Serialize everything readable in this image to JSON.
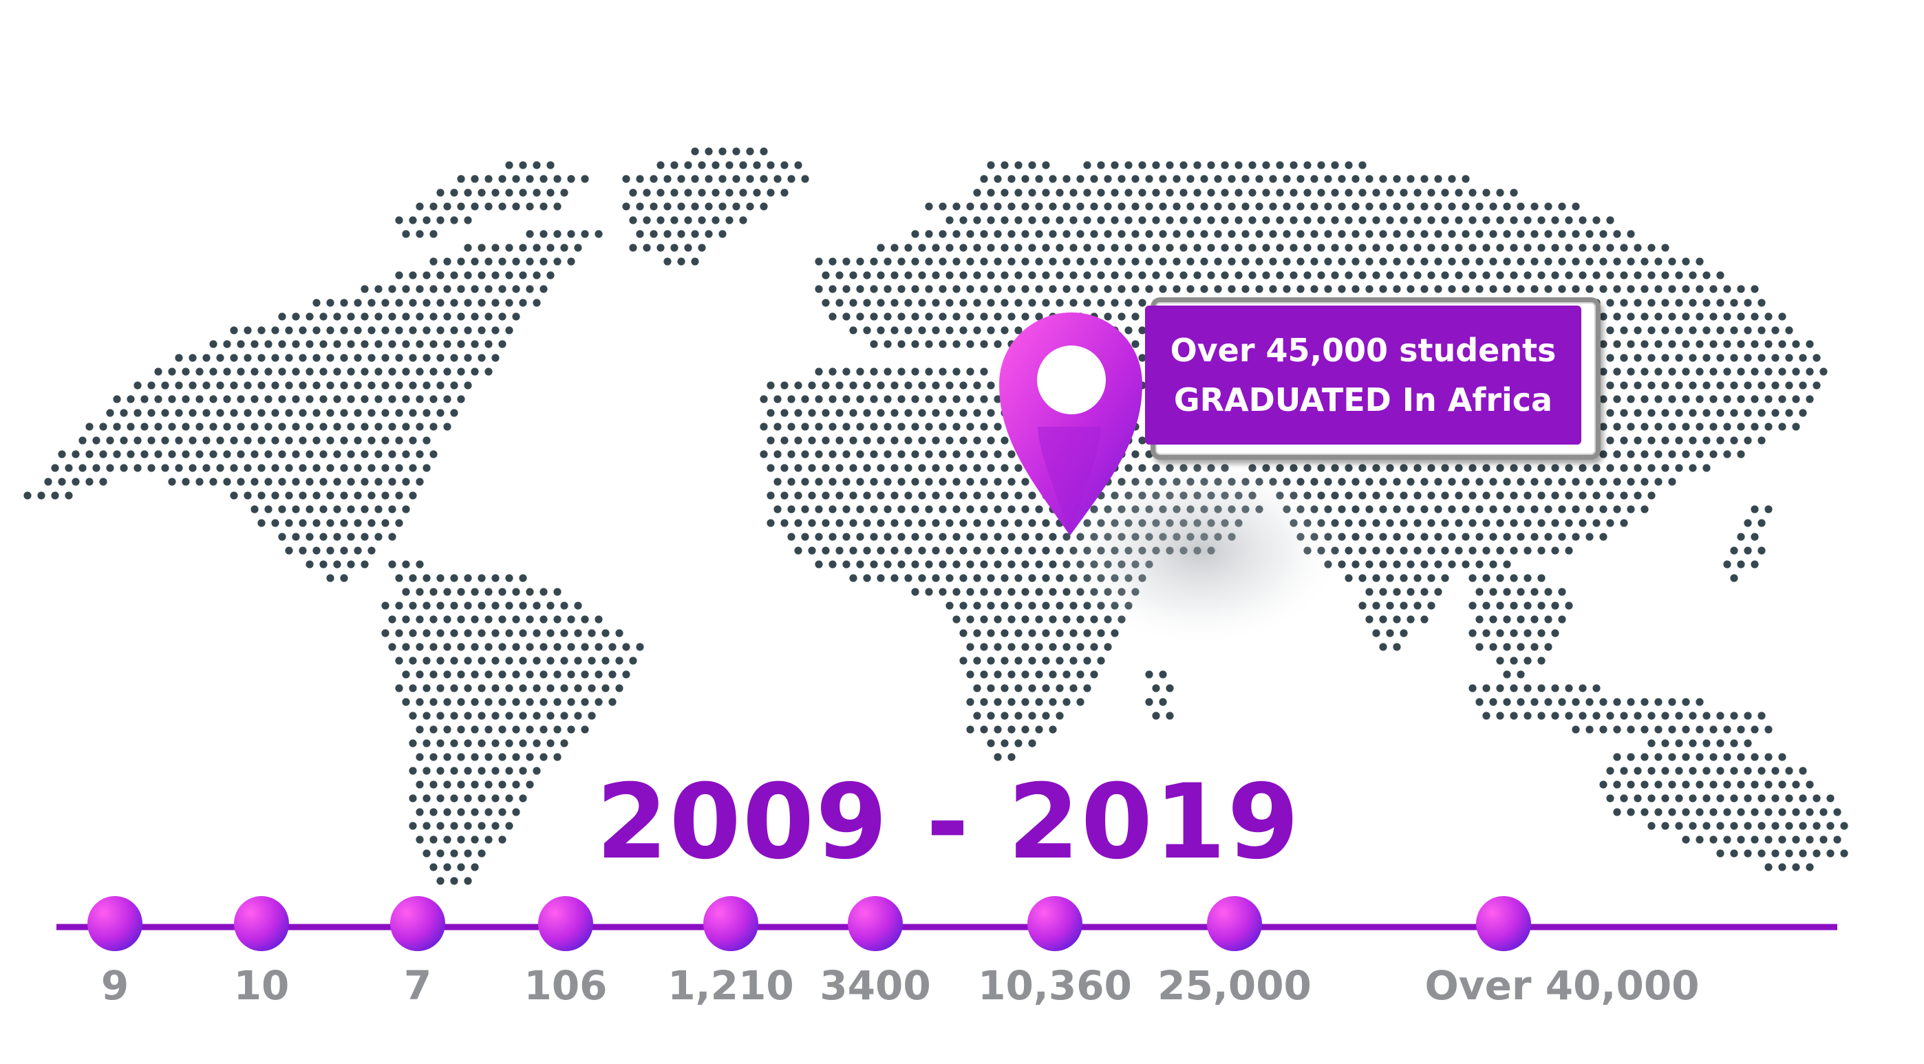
{
  "headline": "2009 - 2019",
  "callout": {
    "line1": "Over 45,000 students",
    "line2": "GRADUATED In Africa"
  },
  "colors": {
    "accent": "#8a0fc3",
    "map_dots": "#37474f",
    "label_grey": "#8f9195",
    "marker_light": "#ff4fe6",
    "marker_dark": "#7a17d6"
  },
  "marker_icon": "location-pin-icon",
  "timeline": [
    {
      "value": "9"
    },
    {
      "value": "10"
    },
    {
      "value": "7"
    },
    {
      "value": "106"
    },
    {
      "value": "1,210"
    },
    {
      "value": "3400"
    },
    {
      "value": "10,360"
    },
    {
      "value": "25,000"
    },
    {
      "value": "Over 40,000"
    }
  ]
}
